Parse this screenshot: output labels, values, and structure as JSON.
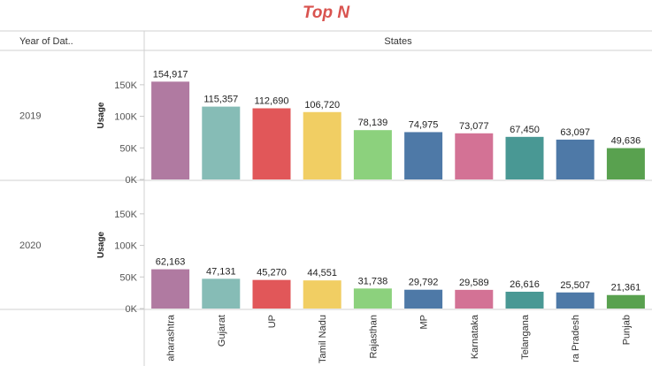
{
  "header": {
    "title": "Top N",
    "row_header": "Year of Dat..",
    "column_header": "States"
  },
  "colors": {
    "title": "#d9534f",
    "bars": [
      "#b07aa1",
      "#86bcb6",
      "#e15759",
      "#f1ce63",
      "#8cd17d",
      "#4e79a7",
      "#d37295",
      "#499894",
      "#4e79a7",
      "#59a14f"
    ]
  },
  "chart_data": {
    "type": "bar",
    "title": "Top N",
    "xlabel": "States",
    "ylabel": "Usage",
    "ylim": [
      0,
      175000
    ],
    "yticks": [
      0,
      50000,
      100000,
      150000
    ],
    "ytick_labels": [
      "0K",
      "50K",
      "100K",
      "150K"
    ],
    "categories": [
      "Maharashtra",
      "Gujarat",
      "UP",
      "Tamil Nadu",
      "Rajasthan",
      "MP",
      "Karnataka",
      "Telangana",
      "Andhra Pradesh",
      "Punjab"
    ],
    "category_labels": [
      "aharashtra",
      "Gujarat",
      "UP",
      "Tamil Nadu",
      "Rajasthan",
      "MP",
      "Karnataka",
      "Telangana",
      "ra Pradesh",
      "Punjab"
    ],
    "grid": false,
    "panels": [
      {
        "row_label": "2019",
        "values": [
          154917,
          115357,
          112690,
          106720,
          78139,
          74975,
          73077,
          67450,
          63097,
          49636
        ],
        "value_labels": [
          "154,917",
          "115,357",
          "112,690",
          "106,720",
          "78,139",
          "74,975",
          "73,077",
          "67,450",
          "63,097",
          "49,636"
        ]
      },
      {
        "row_label": "2020",
        "values": [
          62163,
          47131,
          45270,
          44551,
          31738,
          29792,
          29589,
          26616,
          25507,
          21361
        ],
        "value_labels": [
          "62,163",
          "47,131",
          "45,270",
          "44,551",
          "31,738",
          "29,792",
          "29,589",
          "26,616",
          "25,507",
          "21,361"
        ]
      }
    ]
  }
}
